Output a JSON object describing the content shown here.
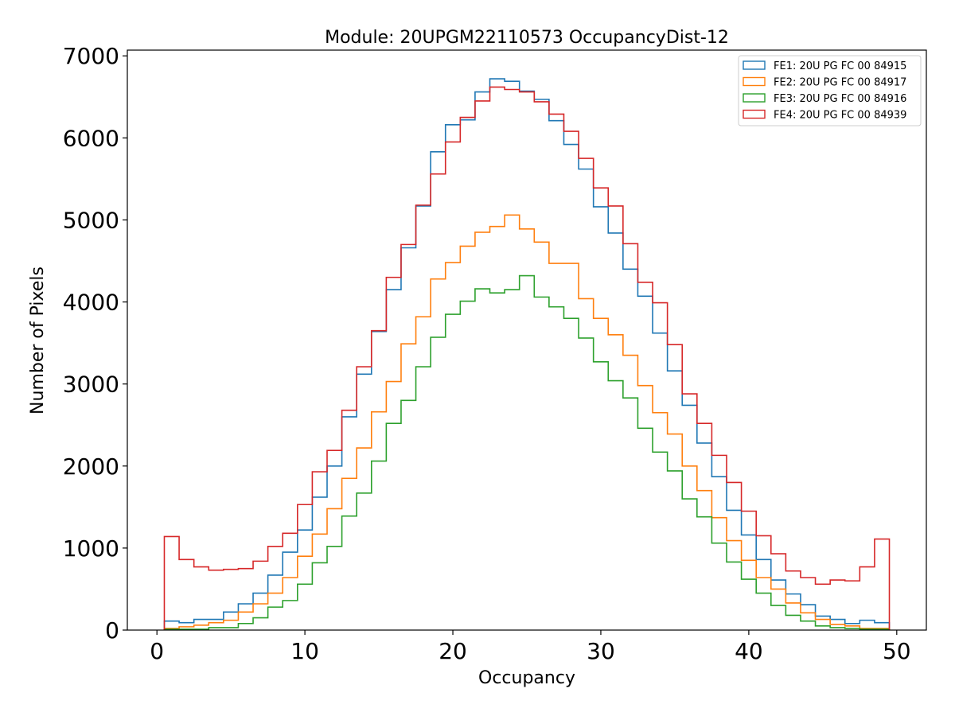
{
  "chart_data": {
    "type": "histogram-step",
    "title": "Module: 20UPGM22110573 OccupancyDist-12",
    "xlabel": "Occupancy",
    "ylabel": "Number of Pixels",
    "xlim": [
      -2,
      52
    ],
    "ylim": [
      0,
      7070
    ],
    "xticks": [
      0,
      10,
      20,
      30,
      40,
      50
    ],
    "yticks": [
      0,
      1000,
      2000,
      3000,
      4000,
      5000,
      6000,
      7000
    ],
    "bin_edges_start": 0.5,
    "bin_width": 1,
    "legend_position": "top-right",
    "grid": false,
    "series": [
      {
        "name": "FE1: 20U PG FC 00 84915",
        "color": "#1f77b4",
        "values": [
          110,
          90,
          130,
          130,
          220,
          320,
          450,
          670,
          950,
          1220,
          1620,
          2000,
          2600,
          3120,
          3640,
          4150,
          4660,
          5170,
          5830,
          6160,
          6220,
          6560,
          6720,
          6690,
          6570,
          6470,
          6210,
          5920,
          5620,
          5160,
          4840,
          4400,
          4070,
          3620,
          3160,
          2740,
          2280,
          1870,
          1460,
          1160,
          860,
          610,
          440,
          310,
          170,
          130,
          80,
          120,
          90
        ]
      },
      {
        "name": "FE2: 20U PG FC 00 84917",
        "color": "#ff7f0e",
        "values": [
          20,
          40,
          60,
          90,
          120,
          220,
          320,
          450,
          640,
          900,
          1170,
          1480,
          1850,
          2220,
          2660,
          3030,
          3490,
          3820,
          4280,
          4480,
          4680,
          4850,
          4920,
          5060,
          4890,
          4730,
          4470,
          4470,
          4040,
          3800,
          3600,
          3350,
          2980,
          2650,
          2390,
          2000,
          1700,
          1370,
          1090,
          850,
          640,
          500,
          330,
          210,
          130,
          70,
          50,
          20,
          20
        ]
      },
      {
        "name": "FE3: 20U PG FC 00 84916",
        "color": "#2ca02c",
        "values": [
          10,
          10,
          10,
          30,
          30,
          80,
          150,
          280,
          360,
          560,
          820,
          1020,
          1390,
          1670,
          2060,
          2520,
          2800,
          3210,
          3570,
          3850,
          4010,
          4160,
          4110,
          4150,
          4320,
          4060,
          3940,
          3800,
          3560,
          3270,
          3040,
          2830,
          2460,
          2170,
          1940,
          1600,
          1380,
          1060,
          830,
          620,
          450,
          300,
          180,
          110,
          50,
          30,
          20,
          10,
          10
        ]
      },
      {
        "name": "FE4: 20U PG FC 00 84939",
        "color": "#d62728",
        "values": [
          1140,
          860,
          770,
          730,
          740,
          750,
          840,
          1020,
          1180,
          1530,
          1930,
          2190,
          2680,
          3210,
          3650,
          4300,
          4700,
          5180,
          5560,
          5950,
          6250,
          6450,
          6620,
          6590,
          6560,
          6440,
          6290,
          6080,
          5750,
          5390,
          5170,
          4710,
          4240,
          3990,
          3480,
          2880,
          2520,
          2130,
          1800,
          1450,
          1150,
          930,
          720,
          640,
          560,
          610,
          600,
          770,
          1110
        ]
      }
    ]
  }
}
